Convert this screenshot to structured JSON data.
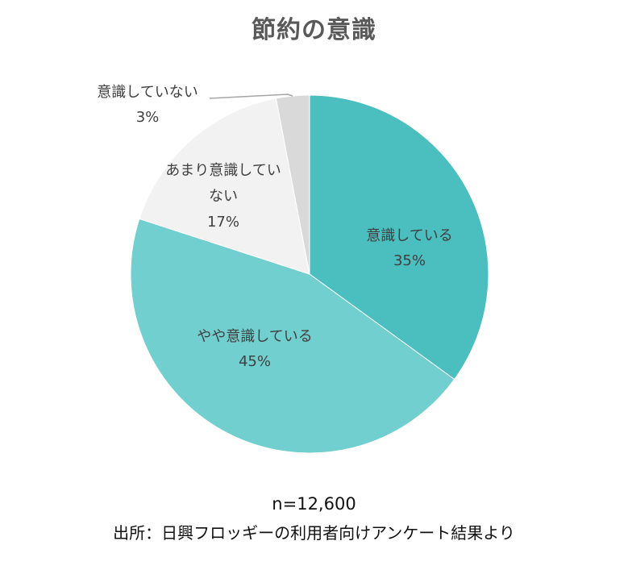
{
  "chart_data": {
    "type": "pie",
    "title": "節約の意識",
    "slices": [
      {
        "label": "意識している",
        "value": 35,
        "value_label": "35%",
        "color": "#4bbfbf"
      },
      {
        "label": "やや意識している",
        "value": 45,
        "value_label": "45%",
        "color": "#72cfcf"
      },
      {
        "label": "あまり意識していない",
        "value": 17,
        "value_label": "17%",
        "color": "#f2f2f2"
      },
      {
        "label": "意識していない",
        "value": 3,
        "value_label": "3%",
        "color": "#d9d9d9"
      }
    ],
    "start_angle": "12 o'clock",
    "direction": "clockwise"
  },
  "footer": {
    "sample_size": "n=12,600",
    "source": "出所：日興フロッギーの利用者向けアンケート結果より"
  }
}
